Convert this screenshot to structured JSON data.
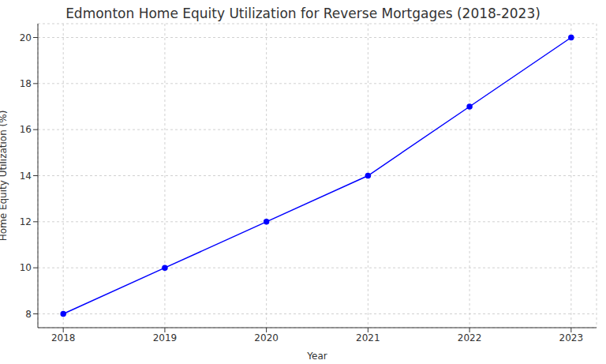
{
  "chart_data": {
    "type": "line",
    "title": "Edmonton Home Equity Utilization for Reverse Mortgages (2018-2023)",
    "x_label": "Year",
    "y_label": "Home Equity Utilization (%)",
    "x": [
      2018,
      2019,
      2020,
      2021,
      2022,
      2023
    ],
    "values": [
      8,
      10,
      12,
      14,
      17,
      20
    ],
    "color": "#0000ff",
    "marker": "o",
    "line_style": "solid",
    "xlim": [
      2017.75,
      2023.25
    ],
    "xticks": [
      2018,
      2019,
      2020,
      2021,
      2022,
      2023
    ],
    "ylim": [
      7.4,
      20.6
    ],
    "yticks": [
      8,
      10,
      12,
      14,
      16,
      18,
      20
    ],
    "grid": true
  }
}
